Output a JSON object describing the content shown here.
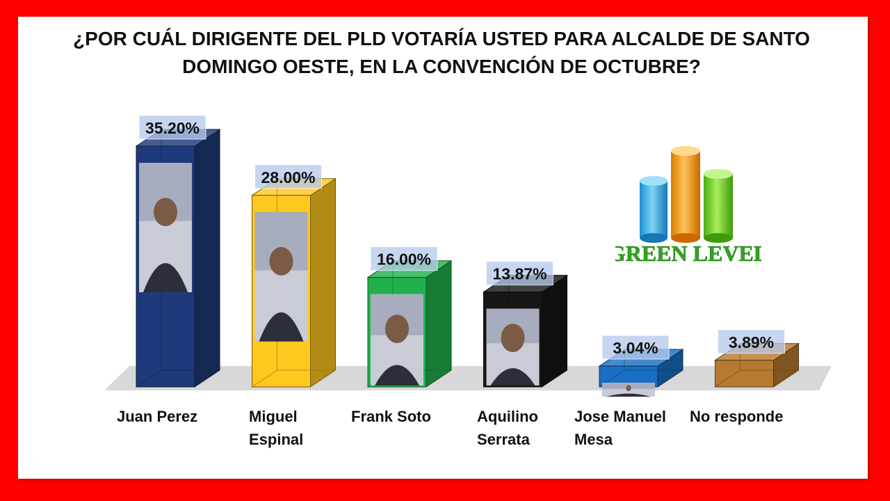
{
  "title_lines": [
    "¿POR CUÁL DIRIGENTE DEL PLD VOTARÍA USTED PARA ALCALDE DE SANTO",
    "DOMINGO OESTE, EN LA CONVENCIÓN DE OCTUBRE?"
  ],
  "logo_text": "GREEN LEVEL",
  "chart_data": {
    "type": "bar",
    "title": "¿POR CUÁL DIRIGENTE DEL PLD VOTARÍA USTED PARA ALCALDE DE SANTO DOMINGO OESTE, EN LA CONVENCIÓN DE OCTUBRE?",
    "xlabel": "",
    "ylabel": "",
    "categories": [
      "Juan Perez",
      "Miguel Espinal",
      "Frank Soto",
      "Aquilino Serrata",
      "Jose Manuel Mesa",
      "No responde"
    ],
    "category_lines": [
      [
        "Juan Perez"
      ],
      [
        "Miguel",
        "Espinal"
      ],
      [
        "Frank Soto"
      ],
      [
        "Aquilino",
        "Serrata"
      ],
      [
        "Jose Manuel",
        "Mesa"
      ],
      [
        "No responde"
      ]
    ],
    "values": [
      35.2,
      28.0,
      16.0,
      13.87,
      3.04,
      3.89
    ],
    "data_labels": [
      "35.20%",
      "28.00%",
      "16.00%",
      "13.87%",
      "3.04%",
      "3.89%"
    ],
    "colors": [
      "#1f3a7a",
      "#ffc81e",
      "#21b14c",
      "#161616",
      "#1a6fc4",
      "#b87a2e"
    ],
    "ylim": [
      0,
      35.2
    ],
    "grid": false,
    "legend": "none",
    "photo_placeholders": [
      true,
      true,
      true,
      true,
      true,
      false
    ]
  }
}
